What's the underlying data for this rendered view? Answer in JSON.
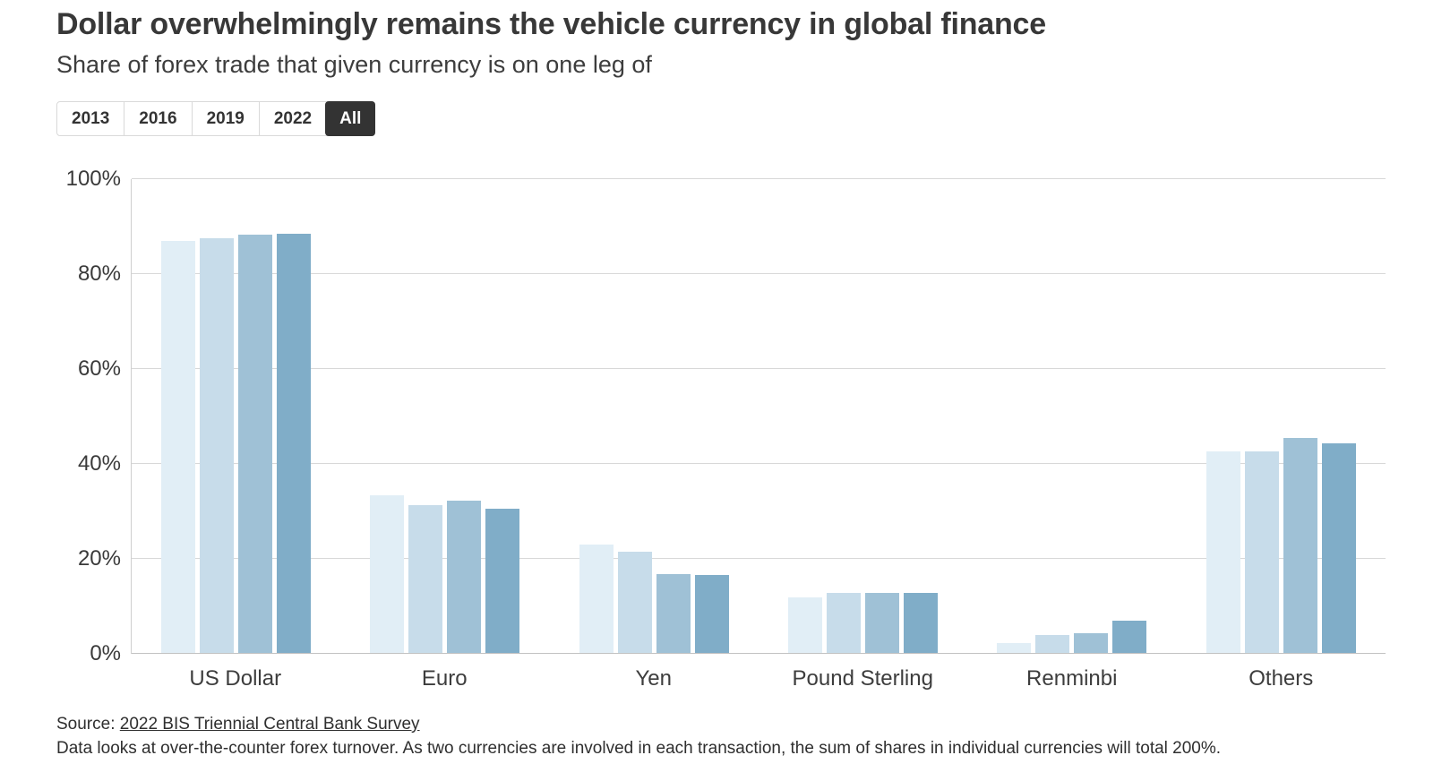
{
  "header": {
    "title": "Dollar overwhelmingly remains the vehicle currency in global finance",
    "subtitle": "Share of forex trade that given currency is on one leg of"
  },
  "tabs": [
    {
      "label": "2013",
      "selected": false
    },
    {
      "label": "2016",
      "selected": false
    },
    {
      "label": "2019",
      "selected": false
    },
    {
      "label": "2022",
      "selected": false
    },
    {
      "label": "All",
      "selected": true
    }
  ],
  "chart_data": {
    "type": "bar",
    "title": "Dollar overwhelmingly remains the vehicle currency in global finance",
    "subtitle": "Share of forex trade that given currency is on one leg of",
    "categories": [
      "US Dollar",
      "Euro",
      "Yen",
      "Pound Sterling",
      "Renminbi",
      "Others"
    ],
    "series": [
      {
        "name": "2013",
        "color": "#e1eef6",
        "values": [
          87.0,
          33.4,
          23.0,
          11.8,
          2.2,
          42.6
        ]
      },
      {
        "name": "2016",
        "color": "#c7dcea",
        "values": [
          87.6,
          31.4,
          21.6,
          12.8,
          4.0,
          42.6
        ]
      },
      {
        "name": "2019",
        "color": "#9fc1d6",
        "values": [
          88.3,
          32.3,
          16.8,
          12.8,
          4.3,
          45.5
        ]
      },
      {
        "name": "2022",
        "color": "#80adc8",
        "values": [
          88.5,
          30.5,
          16.7,
          12.9,
          7.0,
          44.4
        ]
      }
    ],
    "xlabel": "",
    "ylabel": "",
    "ylim": [
      0,
      100
    ],
    "yticks": [
      {
        "value": 0,
        "label": "0%"
      },
      {
        "value": 20,
        "label": "20%"
      },
      {
        "value": 40,
        "label": "40%"
      },
      {
        "value": 60,
        "label": "60%"
      },
      {
        "value": 80,
        "label": "80%"
      },
      {
        "value": 100,
        "label": "100%"
      }
    ],
    "grid": true,
    "legend": false
  },
  "footer": {
    "source_prefix": "Source: ",
    "source_link": "2022 BIS Triennial Central Bank Survey",
    "note": "Data looks at over-the-counter forex turnover. As two currencies are involved in each transaction, the sum of shares in individual currencies will total 200%."
  }
}
